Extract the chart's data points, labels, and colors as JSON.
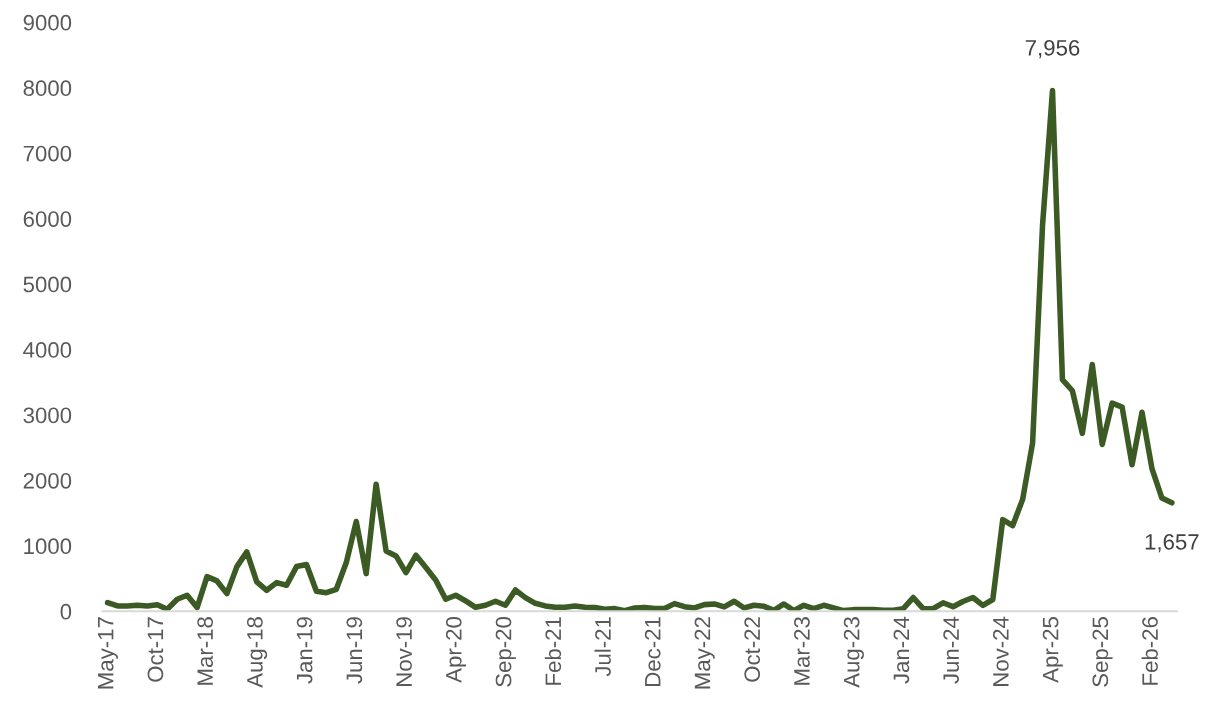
{
  "chart_data": {
    "type": "line",
    "categories": [
      "May-17",
      null,
      null,
      null,
      null,
      "Oct-17",
      null,
      null,
      null,
      null,
      "Mar-18",
      null,
      null,
      null,
      null,
      "Aug-18",
      null,
      null,
      null,
      null,
      "Jan-19",
      null,
      null,
      null,
      null,
      "Jun-19",
      null,
      null,
      null,
      null,
      "Nov-19",
      null,
      null,
      null,
      null,
      "Apr-20",
      null,
      null,
      null,
      null,
      "Sep-20",
      null,
      null,
      null,
      null,
      "Feb-21",
      null,
      null,
      null,
      null,
      "Jul-21",
      null,
      null,
      null,
      null,
      "Dec-21",
      null,
      null,
      null,
      null,
      "May-22",
      null,
      null,
      null,
      null,
      "Oct-22",
      null,
      null,
      null,
      null,
      "Mar-23",
      null,
      null,
      null,
      null,
      "Aug-23",
      null,
      null,
      null,
      null,
      "Jan-24",
      null,
      null,
      null,
      null,
      "Jun-24",
      null,
      null,
      null,
      null,
      "Nov-24",
      null,
      null,
      null,
      null,
      "Apr-25",
      null,
      null,
      null,
      null,
      "Sep-25",
      null,
      null,
      null,
      null,
      "Feb-26",
      null,
      null
    ],
    "series": [
      {
        "color": "#3b5a24",
        "values": [
          133,
          82,
          82,
          92,
          82,
          100,
          30,
          184,
          245,
          56,
          530,
          464,
          270,
          683,
          907,
          449,
          321,
          438,
          398,
          683,
          714,
          306,
          285,
          336,
          744,
          1371,
          576,
          1942,
          922,
          846,
          591,
          856,
          668,
          474,
          184,
          245,
          158,
          61,
          92,
          153,
          92,
          326,
          209,
          122,
          82,
          61,
          61,
          82,
          61,
          56,
          31,
          41,
          10,
          51,
          56,
          41,
          41,
          117,
          71,
          51,
          102,
          112,
          66,
          153,
          51,
          92,
          76,
          15,
          112,
          10,
          92,
          41,
          92,
          51,
          10,
          25,
          25,
          25,
          15,
          15,
          40,
          210,
          40,
          40,
          130,
          70,
          150,
          210,
          90,
          180,
          1400,
          1310,
          1710,
          2570,
          5900,
          7956,
          3540,
          3370,
          2720,
          3770,
          2550,
          3180,
          3120,
          2240,
          3040,
          2180,
          1730,
          1657
        ],
        "value_labels": [
          null,
          null,
          null,
          null,
          null,
          null,
          null,
          null,
          null,
          null,
          null,
          null,
          null,
          null,
          null,
          null,
          null,
          null,
          null,
          null,
          null,
          null,
          null,
          null,
          null,
          null,
          null,
          null,
          null,
          null,
          null,
          null,
          null,
          null,
          null,
          null,
          null,
          null,
          null,
          null,
          null,
          null,
          null,
          null,
          null,
          null,
          null,
          null,
          null,
          null,
          null,
          null,
          null,
          null,
          null,
          null,
          null,
          null,
          null,
          null,
          null,
          null,
          null,
          null,
          null,
          null,
          null,
          null,
          null,
          null,
          null,
          null,
          null,
          null,
          null,
          null,
          null,
          null,
          null,
          null,
          null,
          null,
          null,
          null,
          null,
          null,
          null,
          null,
          null,
          null,
          null,
          null,
          null,
          null,
          null,
          "7,956",
          null,
          null,
          null,
          null,
          null,
          null,
          null,
          null,
          null,
          null,
          null,
          "1,657"
        ]
      }
    ],
    "ylim": [
      0,
      9000
    ],
    "yticks": [
      0,
      1000,
      2000,
      3000,
      4000,
      5000,
      6000,
      7000,
      8000,
      9000
    ],
    "grid": false,
    "legend": false,
    "marker": "none",
    "line_style": "solid"
  }
}
